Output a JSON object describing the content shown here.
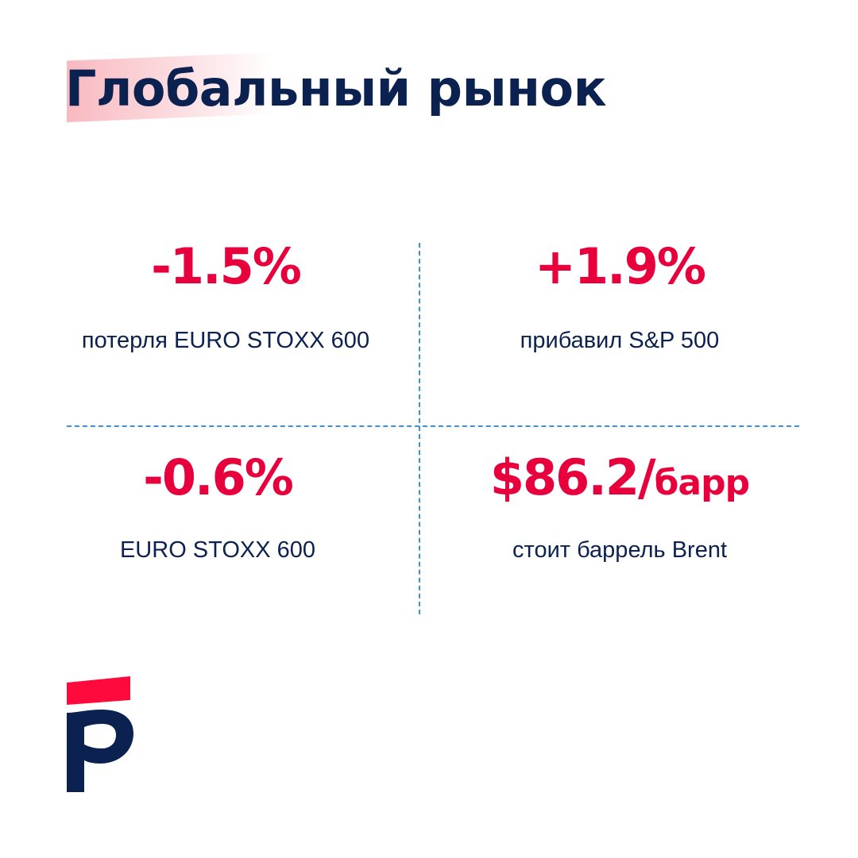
{
  "title": "Глобальный рынок",
  "stats": [
    {
      "value": "-1.5%",
      "unit": "",
      "label": "потерля EURO STOXX 600"
    },
    {
      "value": "+1.9%",
      "unit": "",
      "label": "прибавил S&P 500"
    },
    {
      "value": "-0.6%",
      "unit": "",
      "label": "EURO STOXX 600"
    },
    {
      "value": "$86.2/",
      "unit": "барр",
      "label": "стоит баррель Brent"
    }
  ],
  "colors": {
    "navy": "#0b2150",
    "accent_red": "#e8003d",
    "divider_blue": "#3f8fd4",
    "highlight_pink": "#f2808c"
  },
  "logo": {
    "icon": "brand-p-logo"
  }
}
